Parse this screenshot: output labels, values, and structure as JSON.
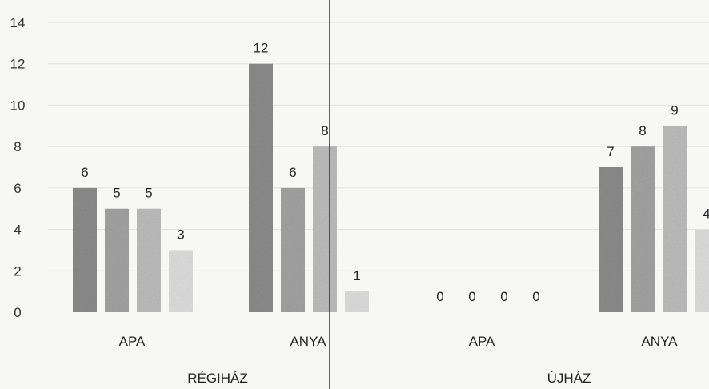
{
  "chart_data": {
    "type": "bar",
    "y_ticks": [
      "0",
      "2",
      "4",
      "6",
      "8",
      "10",
      "12",
      "14"
    ],
    "ylim": [
      0,
      14
    ],
    "grid": true,
    "groups": [
      {
        "label": "RÉGIHÁZ",
        "categories": [
          {
            "label": "APA",
            "values": [
              6,
              5,
              5,
              3
            ]
          },
          {
            "label": "ANYA",
            "values": [
              12,
              6,
              8,
              1
            ]
          }
        ]
      },
      {
        "label": "ÚJHÁZ",
        "categories": [
          {
            "label": "APA",
            "values": [
              0,
              0,
              0,
              0
            ]
          },
          {
            "label": "ANYA",
            "values": [
              7,
              8,
              9,
              4
            ]
          }
        ]
      }
    ],
    "series_colors": [
      "#8c8c8c",
      "#a3a3a3",
      "#bdbdbd",
      "#dedede"
    ]
  }
}
